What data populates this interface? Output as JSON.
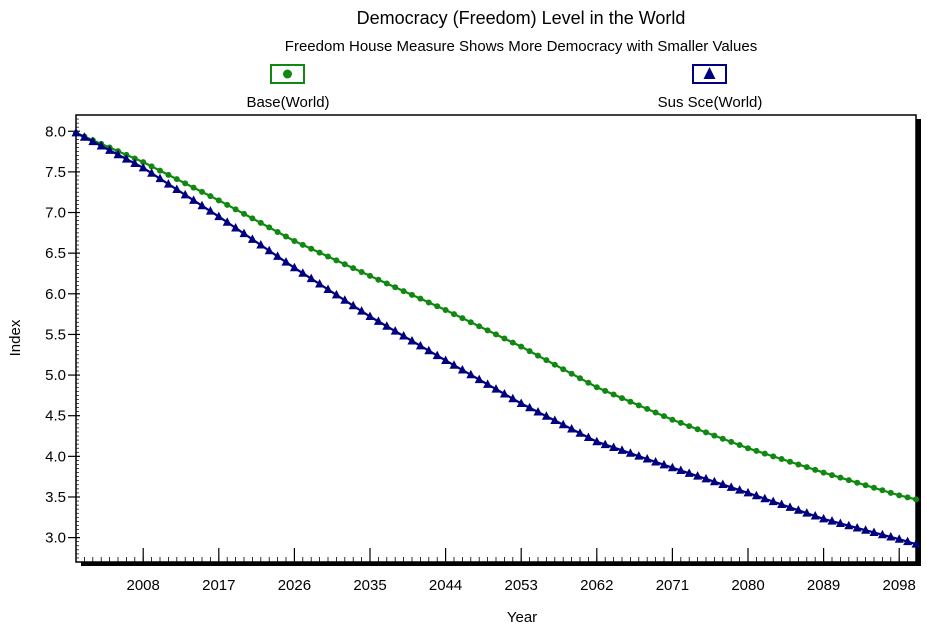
{
  "chart_data": {
    "type": "line",
    "title": "Democracy (Freedom) Level in the World",
    "subtitle": "Freedom House Measure Shows More Democracy with Smaller Values",
    "xlabel": "Year",
    "ylabel": "Index",
    "xlim": [
      2000,
      2100
    ],
    "ylim": [
      2.7,
      8.2
    ],
    "x_ticks": [
      "2008",
      "2017",
      "2026",
      "2035",
      "2044",
      "2053",
      "2062",
      "2071",
      "2080",
      "2089",
      "2098"
    ],
    "y_ticks": [
      "3.0",
      "3.5",
      "4.0",
      "4.5",
      "5.0",
      "5.5",
      "6.0",
      "6.5",
      "7.0",
      "7.5",
      "8.0"
    ],
    "grid": false,
    "legend_placement": "top",
    "series": [
      {
        "name": "Base(World)",
        "color": "#118811",
        "marker": "circle",
        "x": [
          2000,
          2008,
          2017,
          2026,
          2035,
          2044,
          2053,
          2062,
          2071,
          2080,
          2089,
          2098,
          2100
        ],
        "values": [
          7.98,
          7.62,
          7.15,
          6.65,
          6.22,
          5.8,
          5.35,
          4.85,
          4.45,
          4.1,
          3.8,
          3.52,
          3.47
        ]
      },
      {
        "name": "Sus Sce(World)",
        "color": "#000080",
        "marker": "triangle",
        "x": [
          2000,
          2008,
          2017,
          2026,
          2035,
          2044,
          2053,
          2062,
          2071,
          2080,
          2089,
          2098,
          2100
        ],
        "values": [
          7.98,
          7.55,
          6.95,
          6.32,
          5.72,
          5.18,
          4.65,
          4.18,
          3.86,
          3.55,
          3.23,
          2.98,
          2.92
        ]
      }
    ]
  }
}
